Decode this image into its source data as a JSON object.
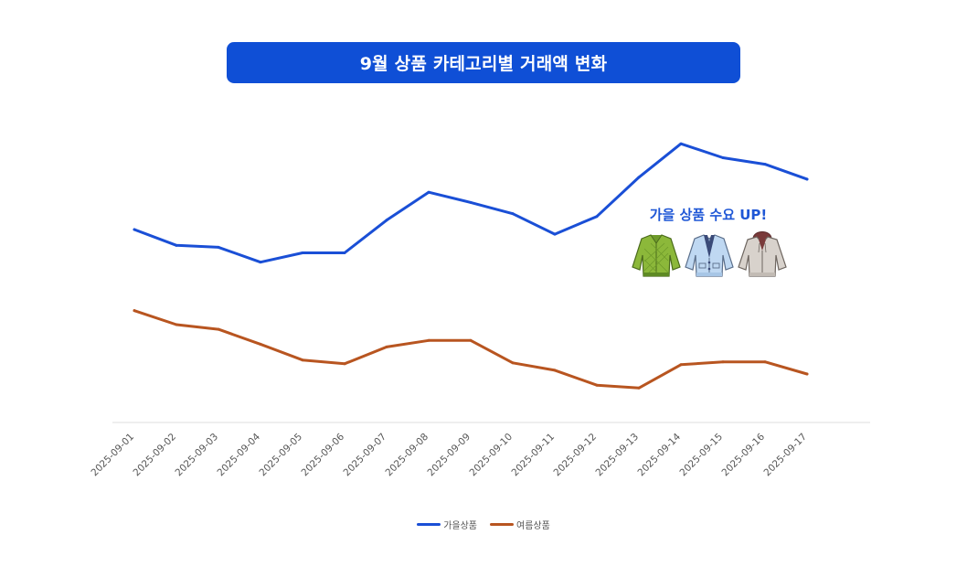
{
  "title": "9월 상품 카테고리별 거래액 변화",
  "callout": {
    "text": "가을 상품 수요 UP!",
    "icons": [
      "green-quilted-jacket-icon",
      "light-blue-cardigan-icon",
      "beige-hooded-jacket-icon"
    ]
  },
  "chart_data": {
    "type": "line",
    "title": "9월 상품 카테고리별 거래액 변화",
    "x": [
      "2025-09-01",
      "2025-09-02",
      "2025-09-03",
      "2025-09-04",
      "2025-09-05",
      "2025-09-06",
      "2025-09-07",
      "2025-09-08",
      "2025-09-09",
      "2025-09-10",
      "2025-09-11",
      "2025-09-12",
      "2025-09-13",
      "2025-09-14",
      "2025-09-15",
      "2025-09-16",
      "2025-09-17"
    ],
    "series": [
      {
        "name": "가을상품",
        "color": "#1a4fd6",
        "values": [
          207,
          190,
          188,
          172,
          182,
          182,
          217,
          247,
          236,
          224,
          202,
          221,
          263,
          299,
          284,
          277,
          261
        ]
      },
      {
        "name": "여름상품",
        "color": "#b85520",
        "values": [
          120,
          105,
          100,
          84,
          67,
          63,
          81,
          88,
          88,
          64,
          56,
          40,
          37,
          62,
          65,
          65,
          52
        ]
      }
    ],
    "ylim": [
      0,
      310
    ],
    "xlabel": "",
    "ylabel": "",
    "grid": false,
    "legend": "bottom-center"
  }
}
